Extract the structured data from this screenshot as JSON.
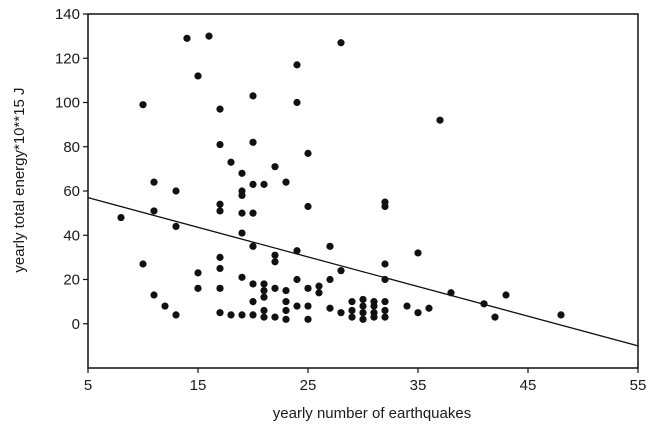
{
  "chart_data": {
    "type": "scatter",
    "title": "",
    "xlabel": "yearly number of earthquakes",
    "ylabel": "yearly total energy*10**15 J",
    "xlim": [
      5,
      55
    ],
    "ylim": [
      -20,
      140
    ],
    "grid": false,
    "x_ticks": [
      "5",
      "15",
      "25",
      "35",
      "45",
      "55"
    ],
    "y_ticks": [
      "0",
      "20",
      "40",
      "60",
      "80",
      "100",
      "120",
      "140"
    ],
    "colors": {
      "points": "#111111",
      "line": "#111111",
      "frame": "#111111"
    },
    "points": [
      [
        8,
        48
      ],
      [
        10,
        99
      ],
      [
        10,
        27
      ],
      [
        11,
        64
      ],
      [
        11,
        51
      ],
      [
        11,
        13
      ],
      [
        12,
        8
      ],
      [
        13,
        60
      ],
      [
        13,
        44
      ],
      [
        13,
        4
      ],
      [
        14,
        129
      ],
      [
        15,
        112
      ],
      [
        15,
        23
      ],
      [
        15,
        16
      ],
      [
        16,
        130
      ],
      [
        17,
        97
      ],
      [
        17,
        81
      ],
      [
        17,
        54
      ],
      [
        17,
        51
      ],
      [
        17,
        30
      ],
      [
        17,
        25
      ],
      [
        17,
        16
      ],
      [
        17,
        5
      ],
      [
        18,
        73
      ],
      [
        18,
        4
      ],
      [
        19,
        50
      ],
      [
        19,
        41
      ],
      [
        19,
        21
      ],
      [
        19,
        4
      ],
      [
        20,
        103
      ],
      [
        20,
        82
      ],
      [
        20,
        50
      ],
      [
        20,
        35
      ],
      [
        20,
        18
      ],
      [
        20,
        10
      ],
      [
        20,
        4
      ],
      [
        21,
        63
      ],
      [
        21,
        18
      ],
      [
        21,
        15
      ],
      [
        21,
        12
      ],
      [
        21,
        6
      ],
      [
        21,
        3
      ],
      [
        22,
        71
      ],
      [
        22,
        31
      ],
      [
        22,
        28
      ],
      [
        22,
        16
      ],
      [
        22,
        3
      ],
      [
        23,
        64
      ],
      [
        23,
        15
      ],
      [
        23,
        10
      ],
      [
        23,
        6
      ],
      [
        23,
        2
      ],
      [
        24,
        117
      ],
      [
        24,
        100
      ],
      [
        24,
        33
      ],
      [
        24,
        20
      ],
      [
        24,
        8
      ],
      [
        25,
        77
      ],
      [
        25,
        53
      ],
      [
        25,
        16
      ],
      [
        25,
        8
      ],
      [
        25,
        2
      ],
      [
        26,
        17
      ],
      [
        26,
        14
      ],
      [
        27,
        35
      ],
      [
        27,
        20
      ],
      [
        27,
        7
      ],
      [
        28,
        127
      ],
      [
        28,
        24
      ],
      [
        28,
        5
      ],
      [
        29,
        10
      ],
      [
        29,
        6
      ],
      [
        29,
        3
      ],
      [
        30,
        11
      ],
      [
        30,
        8
      ],
      [
        30,
        5
      ],
      [
        30,
        2
      ],
      [
        31,
        10
      ],
      [
        31,
        8
      ],
      [
        31,
        5
      ],
      [
        31,
        3
      ],
      [
        32,
        55
      ],
      [
        32,
        53
      ],
      [
        32,
        27
      ],
      [
        32,
        20
      ],
      [
        32,
        10
      ],
      [
        32,
        6
      ],
      [
        32,
        3
      ],
      [
        34,
        8
      ],
      [
        35,
        32
      ],
      [
        35,
        5
      ],
      [
        36,
        7
      ],
      [
        37,
        92
      ],
      [
        38,
        14
      ],
      [
        41,
        9
      ],
      [
        42,
        3
      ],
      [
        43,
        13
      ],
      [
        48,
        4
      ],
      [
        19,
        68
      ],
      [
        19,
        60
      ],
      [
        19,
        58
      ],
      [
        20,
        63
      ]
    ],
    "regression_line": {
      "x": [
        5,
        55
      ],
      "y": [
        57,
        -10
      ]
    }
  }
}
